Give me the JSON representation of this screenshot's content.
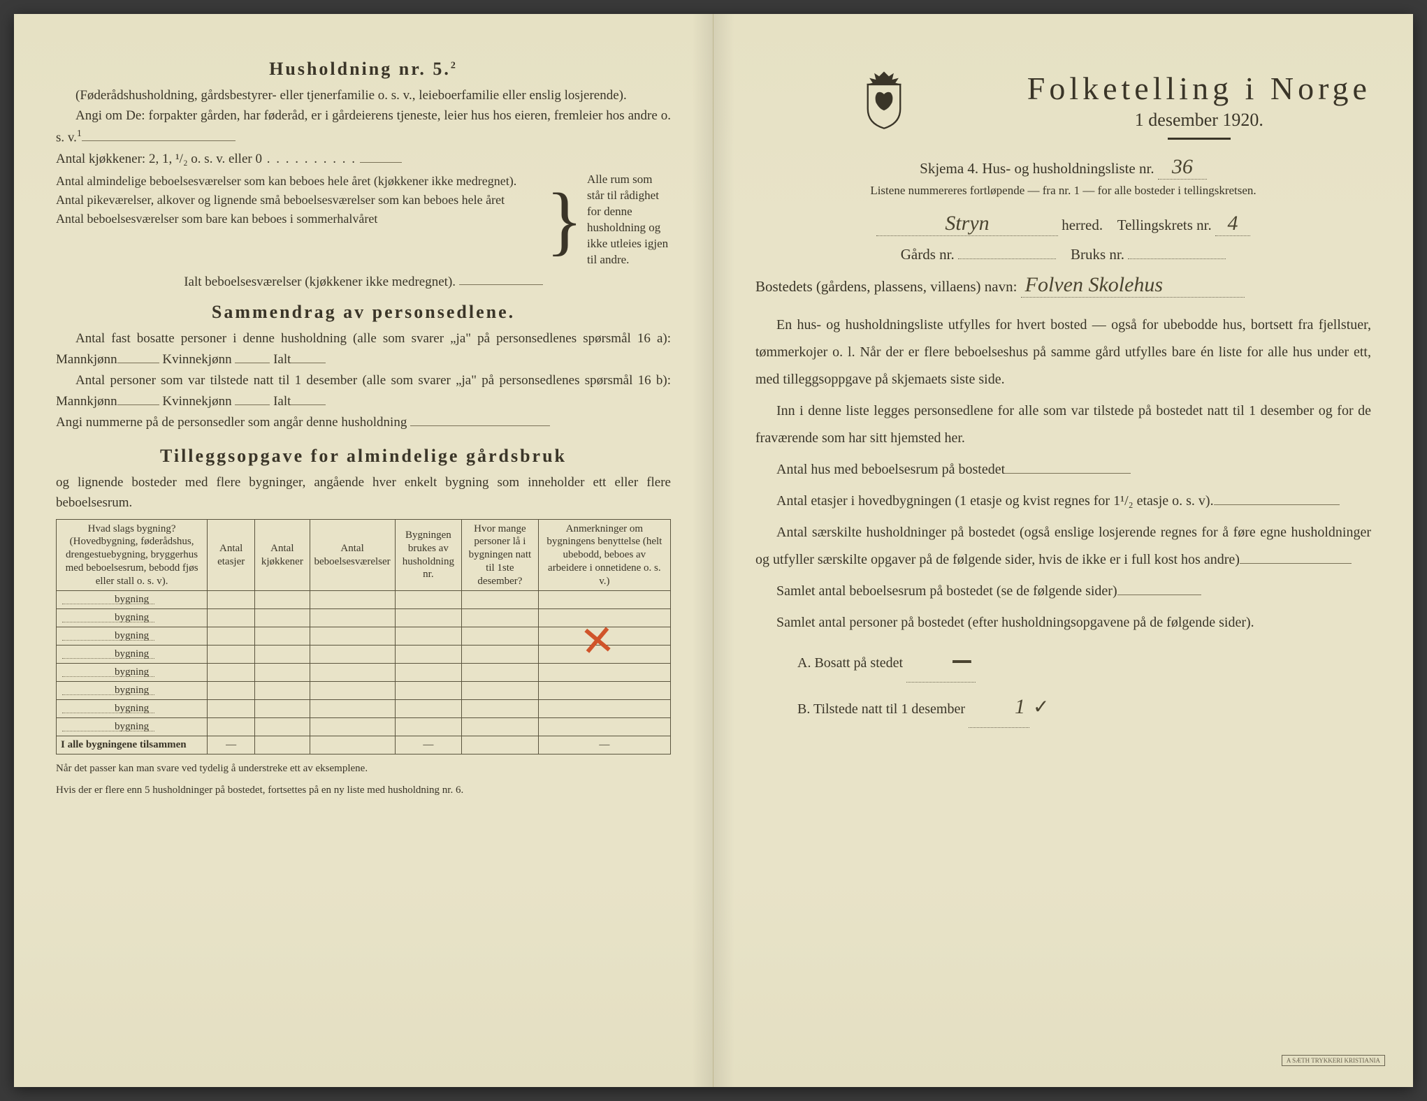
{
  "left": {
    "h5_title": "Husholdning nr. 5.",
    "h5_sup": "2",
    "h5_p1": "(Føderådshusholdning, gårdsbestyrer- eller tjenerfamilie o. s. v., leieboerfamilie eller enslig losjerende).",
    "h5_p2": "Angi om De: forpakter gården, har føderåd, er i gårdeierens tjeneste, leier hus hos eieren, fremleier hos andre o. s. v.",
    "h5_sup2": "1",
    "kitchens_line": "Antal kjøkkener: 2, 1, ¹/₂ o. s. v. eller 0",
    "brace_lines": [
      "Antal almindelige beboelsesværelser som kan beboes hele året (kjøkkener ikke medregnet).",
      "Antal pikeværelser, alkover og lignende små beboelsesværelser som kan beboes hele året",
      "Antal beboelsesværelser som bare kan beboes i sommerhalvåret"
    ],
    "brace_right": "Alle rum som står til rådighet for denne husholdning og ikke utleies igjen til andre.",
    "ialt_line": "Ialt beboelsesværelser (kjøkkener ikke medregnet).",
    "sammen_title": "Sammendrag av personsedlene.",
    "sammen_p1a": "Antal fast bosatte personer i denne husholdning (alle som svarer „ja\" på personsedlenes spørsmål 16 a): Mannkjønn",
    "sammen_kvinne": "Kvinnekjønn",
    "sammen_ialt": "Ialt",
    "sammen_p2a": "Antal personer som var tilstede natt til 1 desember (alle som svarer „ja\" på personsedlenes spørsmål 16 b): Mannkjønn",
    "sammen_p3": "Angi nummerne på de personsedler som angår denne husholdning",
    "tillegg_title": "Tilleggsopgave for almindelige gårdsbruk",
    "tillegg_intro": "og lignende bosteder med flere bygninger, angående hver enkelt bygning som inneholder ett eller flere beboelsesrum.",
    "table_headers": [
      "Hvad slags bygning?\n(Hovedbygning, føderådshus, drengestuebygning, bryggerhus med beboelsesrum, bebodd fjøs eller stall o. s. v).",
      "Antal etasjer",
      "Antal kjøkkener",
      "Antal beboelsesværelser",
      "Bygningen brukes av husholdning nr.",
      "Hvor mange personer lå i bygningen natt til 1ste desember?",
      "Anmerkninger om bygningens benyttelse (helt ubebodd, beboes av arbeidere i onnetidene o. s. v.)"
    ],
    "bygning_label": "bygning",
    "bygning_rows": 8,
    "tilsammen": "I alle bygningene tilsammen",
    "footnote1": "Når det passer kan man svare ved tydelig å understreke ett av eksemplene.",
    "footnote2": "Hvis der er flere enn 5 husholdninger på bostedet, fortsettes på en ny liste med husholdning nr. 6."
  },
  "right": {
    "main_title": "Folketelling i Norge",
    "subtitle": "1 desember 1920.",
    "skjema_line": "Skjema 4.  Hus- og husholdningsliste nr.",
    "skjema_nr": "36",
    "listene": "Listene nummereres fortløpende — fra nr. 1 — for alle bosteder i tellingskretsen.",
    "herred_value": "Stryn",
    "herred_label": "herred.",
    "tellingskrets_label": "Tellingskrets nr.",
    "tellingskrets_nr": "4",
    "gards_label": "Gårds nr.",
    "bruks_label": "Bruks nr.",
    "bosted_label": "Bostedets (gårdens, plassens, villaens) navn:",
    "bosted_value": "Folven Skolehus",
    "para1": "En hus- og husholdningsliste utfylles for hvert bosted — også for ubebodde hus, bortsett fra fjellstuer, tømmerkojer o. l. Når der er flere beboelseshus på samme gård utfylles bare én liste for alle hus under ett, med tilleggsoppgave på skjemaets siste side.",
    "para2": "Inn i denne liste legges personsedlene for alle som var tilstede på bostedet natt til 1 desember og for de fraværende som har sitt hjemsted her.",
    "line_antal_hus": "Antal hus med beboelsesrum på bostedet",
    "line_etasjer": "Antal etasjer i hovedbygningen (1 etasje og kvist regnes for 1¹/₂ etasje o. s. v).",
    "line_saerskilte": "Antal særskilte husholdninger på bostedet (også enslige losjerende regnes for å føre egne husholdninger og utfyller særskilte opgaver på de følgende sider, hvis de ikke er i full kost hos andre)",
    "line_samlet_rum": "Samlet antal beboelsesrum på bostedet (se de følgende sider)",
    "line_samlet_pers": "Samlet antal personer på bostedet (efter husholdningsopgavene på de følgende sider).",
    "a_label": "A.  Bosatt på stedet",
    "a_value": "",
    "b_label": "B.  Tilstede natt til 1 desember",
    "b_value": "1",
    "stamp": "A SÆTH TRYKKERI KRISTIANIA"
  },
  "colors": {
    "paper": "#e8e3c8",
    "ink": "#3a3528",
    "red": "#d0542a",
    "rule": "#5a543e"
  }
}
